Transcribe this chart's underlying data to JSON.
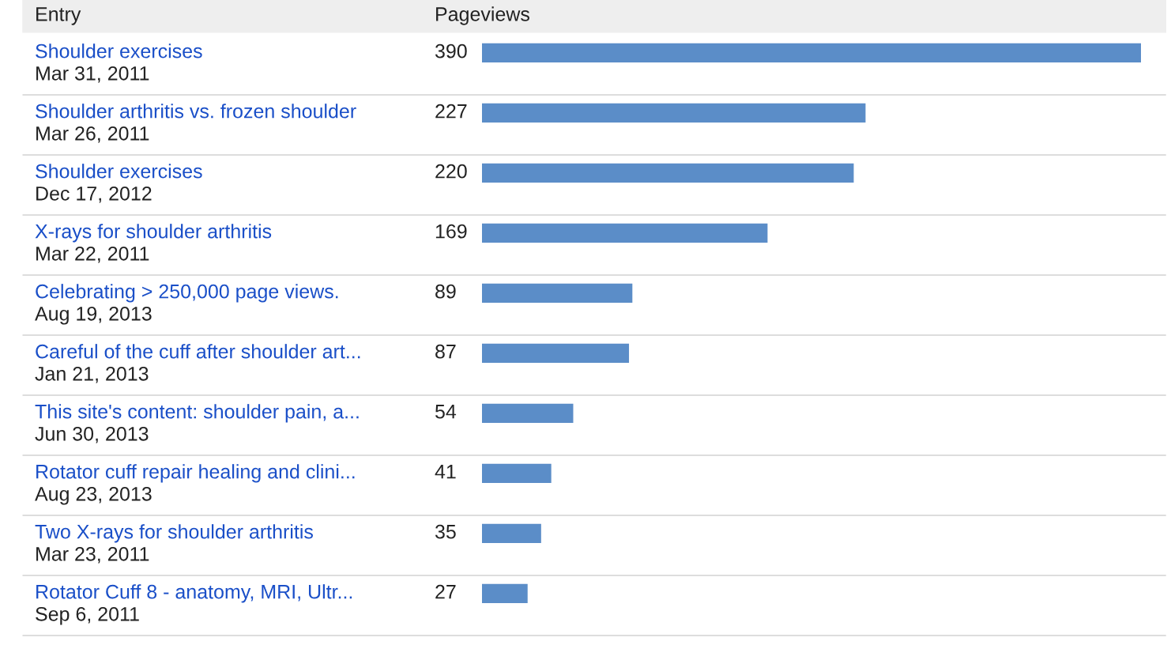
{
  "chart_data": {
    "type": "bar",
    "orientation": "horizontal",
    "ylabel": "Entry",
    "xlabel": "Pageviews",
    "categories": [
      "Shoulder exercises\nMar 31, 2011",
      "Shoulder arthritis vs. frozen shoulder\nMar 26, 2011",
      "Shoulder exercises\nDec 17, 2012",
      "X-rays for shoulder arthritis\nMar 22, 2011",
      "Celebrating > 250,000 page views.\nAug 19, 2013",
      "Careful of the cuff after shoulder art...\nJan 21, 2013",
      "This site's content: shoulder pain, a...\nJun 30, 2013",
      "Rotator cuff repair healing and clini...\nAug 23, 2013",
      "Two X-rays for shoulder arthritis\nMar 23, 2011",
      "Rotator Cuff 8 - anatomy, MRI, Ultr...\nSep 6, 2011"
    ],
    "values": [
      390,
      227,
      220,
      169,
      89,
      87,
      54,
      41,
      35,
      27
    ],
    "color": "#5b8dc8",
    "data_labels": true
  }
}
